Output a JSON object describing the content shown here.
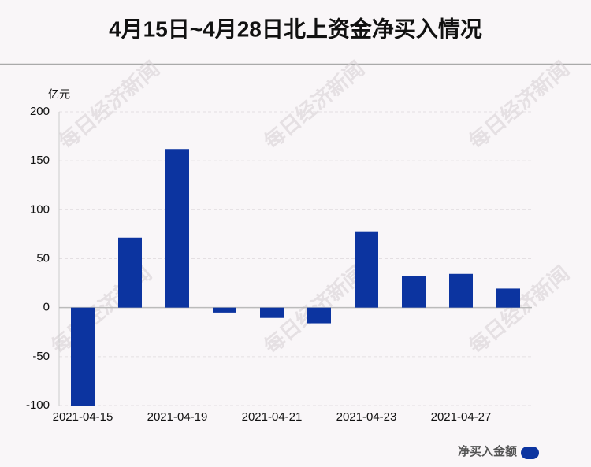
{
  "chart_data": {
    "type": "bar",
    "title": "4月15日~4月28日北上资金净买入情况",
    "y_unit": "亿元",
    "watermark": "每日经济新闻",
    "categories": [
      "2021-04-15",
      null,
      "2021-04-19",
      null,
      "2021-04-21",
      null,
      "2021-04-23",
      null,
      "2021-04-27",
      null
    ],
    "series": [
      {
        "name": "净买入金额",
        "color": "#0c34a0",
        "values": [
          -100,
          71.5,
          162,
          -5,
          -10.5,
          -16,
          78,
          32,
          34.5,
          19.5
        ]
      }
    ],
    "ylim": [
      -100,
      200
    ],
    "yticks": [
      -100,
      -50,
      0,
      50,
      100,
      150,
      200
    ],
    "grid": true
  }
}
